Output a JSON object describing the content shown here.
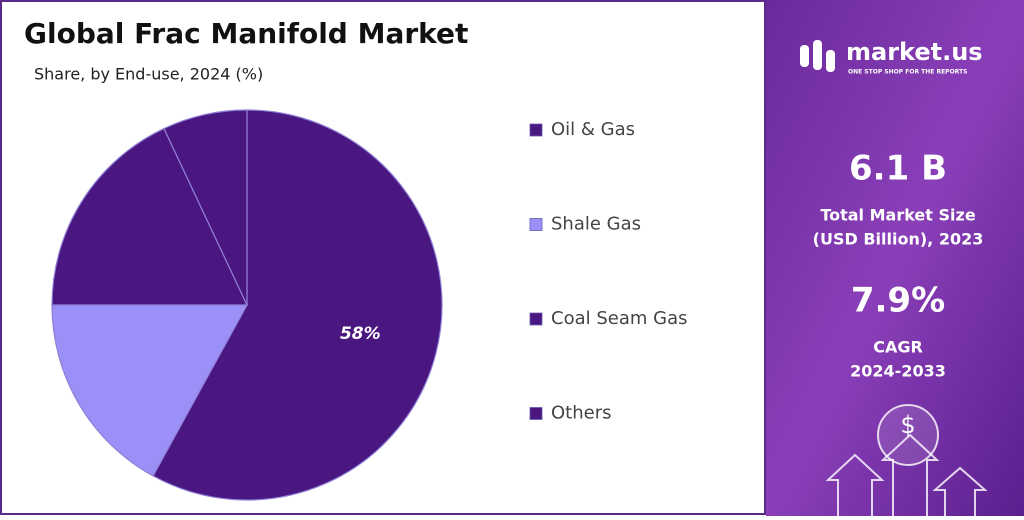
{
  "chart_data": {
    "type": "pie",
    "title": "Global Frac Manifold Market",
    "subtitle": "Share, by End-use, 2024 (%)",
    "categories": [
      "Oil & Gas",
      "Shale Gas",
      "Coal Seam Gas",
      "Others"
    ],
    "values": [
      58,
      17,
      18,
      7
    ],
    "value_labels": [
      "58%",
      null,
      null,
      null
    ],
    "colors": [
      "#4a1680",
      "#9a90f7",
      "#4a1680",
      "#4a1680"
    ],
    "legend": "right"
  },
  "panel": {
    "brand": "market.us",
    "tagline": "ONE STOP SHOP FOR THE REPORTS",
    "market_size": "6.1 B",
    "market_size_label_1": "Total Market Size",
    "market_size_label_2": "(USD Billion), 2023",
    "cagr": "7.9%",
    "cagr_label_1": "CAGR",
    "cagr_label_2": "2024-2033",
    "icon_text": "$"
  }
}
